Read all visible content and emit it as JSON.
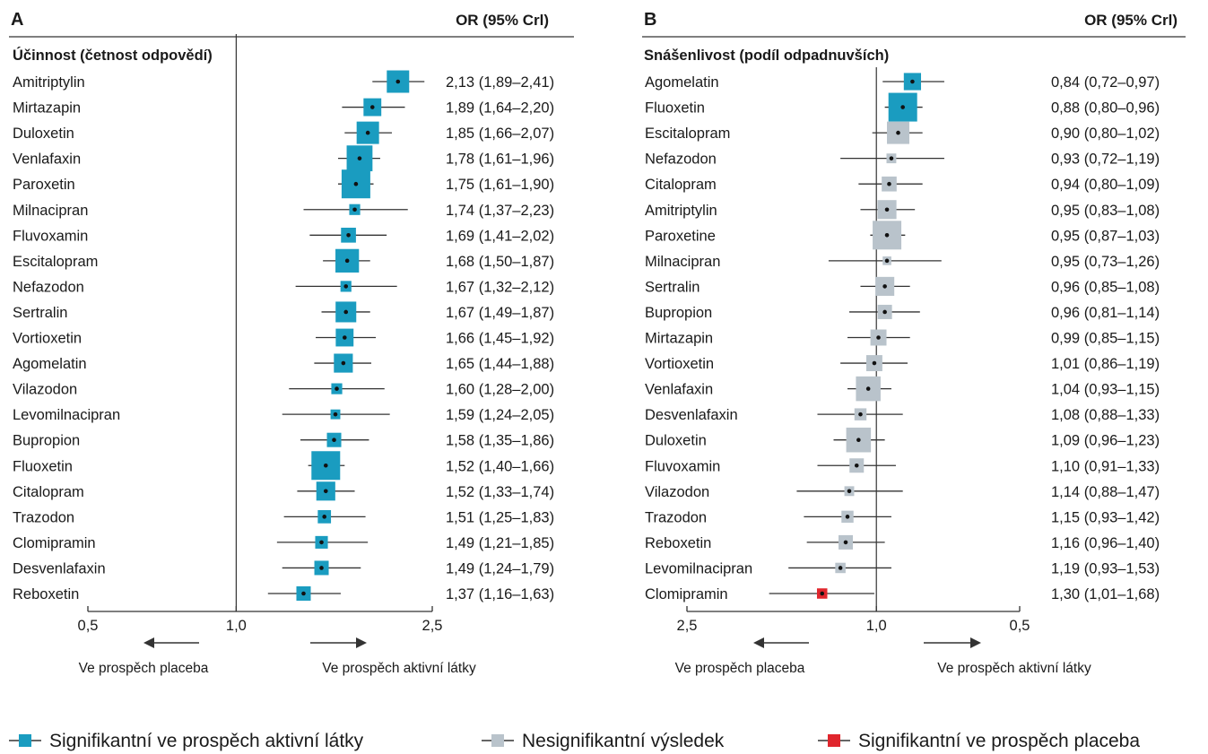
{
  "chart_data": [
    {
      "panel": "A",
      "type": "forest",
      "title": "Účinnost (četnost odpovědí)",
      "column_header": "OR (95% Crl)",
      "x_scale": "log",
      "x_ticks": [
        "0,5",
        "1,0",
        "2,5"
      ],
      "x_tick_values": [
        0.5,
        1.0,
        2.5
      ],
      "xlim": [
        0.5,
        2.5
      ],
      "reference_line": 1.0,
      "direction_left": "Ve prospěch placeba",
      "direction_right": "Ve prospěch aktivní látky",
      "rows": [
        {
          "name": "Amitriptylin",
          "or": 2.13,
          "lo": 1.89,
          "hi": 2.41,
          "weight": 0.78,
          "sig": "active",
          "label": "2,13 (1,89–2,41)"
        },
        {
          "name": "Mirtazapin",
          "or": 1.89,
          "lo": 1.64,
          "hi": 2.2,
          "weight": 0.62,
          "sig": "active",
          "label": "1,89 (1,64–2,20)"
        },
        {
          "name": "Duloxetin",
          "or": 1.85,
          "lo": 1.66,
          "hi": 2.07,
          "weight": 0.78,
          "sig": "active",
          "label": "1,85 (1,66–2,07)"
        },
        {
          "name": "Venlafaxin",
          "or": 1.78,
          "lo": 1.61,
          "hi": 1.96,
          "weight": 0.9,
          "sig": "active",
          "label": "1,78 (1,61–1,96)"
        },
        {
          "name": "Paroxetin",
          "or": 1.75,
          "lo": 1.61,
          "hi": 1.9,
          "weight": 1.0,
          "sig": "active",
          "label": "1,75 (1,61–1,90)"
        },
        {
          "name": "Milnacipran",
          "or": 1.74,
          "lo": 1.37,
          "hi": 2.23,
          "weight": 0.38,
          "sig": "active",
          "label": "1,74 (1,37–2,23)"
        },
        {
          "name": "Fluvoxamin",
          "or": 1.69,
          "lo": 1.41,
          "hi": 2.02,
          "weight": 0.52,
          "sig": "active",
          "label": "1,69 (1,41–2,02)"
        },
        {
          "name": "Escitalopram",
          "or": 1.68,
          "lo": 1.5,
          "hi": 1.87,
          "weight": 0.82,
          "sig": "active",
          "label": "1,68 (1,50–1,87)"
        },
        {
          "name": "Nefazodon",
          "or": 1.67,
          "lo": 1.32,
          "hi": 2.12,
          "weight": 0.38,
          "sig": "active",
          "label": "1,67 (1,32–2,12)"
        },
        {
          "name": "Sertralin",
          "or": 1.67,
          "lo": 1.49,
          "hi": 1.87,
          "weight": 0.72,
          "sig": "active",
          "label": "1,67 (1,49–1,87)"
        },
        {
          "name": "Vortioxetin",
          "or": 1.66,
          "lo": 1.45,
          "hi": 1.92,
          "weight": 0.62,
          "sig": "active",
          "label": "1,66 (1,45–1,92)"
        },
        {
          "name": "Agomelatin",
          "or": 1.65,
          "lo": 1.44,
          "hi": 1.88,
          "weight": 0.66,
          "sig": "active",
          "label": "1,65 (1,44–1,88)"
        },
        {
          "name": "Vilazodon",
          "or": 1.6,
          "lo": 1.28,
          "hi": 2.0,
          "weight": 0.38,
          "sig": "active",
          "label": "1,60 (1,28–2,00)"
        },
        {
          "name": "Levomilnacipran",
          "or": 1.59,
          "lo": 1.24,
          "hi": 2.05,
          "weight": 0.34,
          "sig": "active",
          "label": "1,59 (1,24–2,05)"
        },
        {
          "name": "Bupropion",
          "or": 1.58,
          "lo": 1.35,
          "hi": 1.86,
          "weight": 0.5,
          "sig": "active",
          "label": "1,58 (1,35–1,86)"
        },
        {
          "name": "Fluoxetin",
          "or": 1.52,
          "lo": 1.4,
          "hi": 1.66,
          "weight": 1.0,
          "sig": "active",
          "label": "1,52 (1,40–1,66)"
        },
        {
          "name": "Citalopram",
          "or": 1.52,
          "lo": 1.33,
          "hi": 1.74,
          "weight": 0.66,
          "sig": "active",
          "label": "1,52 (1,33–1,74)"
        },
        {
          "name": "Trazodon",
          "or": 1.51,
          "lo": 1.25,
          "hi": 1.83,
          "weight": 0.46,
          "sig": "active",
          "label": "1,51 (1,25–1,83)"
        },
        {
          "name": "Clomipramin",
          "or": 1.49,
          "lo": 1.21,
          "hi": 1.85,
          "weight": 0.44,
          "sig": "active",
          "label": "1,49 (1,21–1,85)"
        },
        {
          "name": "Desvenlafaxin",
          "or": 1.49,
          "lo": 1.24,
          "hi": 1.79,
          "weight": 0.5,
          "sig": "active",
          "label": "1,49 (1,24–1,79)"
        },
        {
          "name": "Reboxetin",
          "or": 1.37,
          "lo": 1.16,
          "hi": 1.63,
          "weight": 0.5,
          "sig": "active",
          "label": "1,37 (1,16–1,63)"
        }
      ]
    },
    {
      "panel": "B",
      "type": "forest",
      "title": "Snášenlivost (podíl odpadnuvších)",
      "column_header": "OR (95% Crl)",
      "x_scale": "log",
      "x_reversed": true,
      "x_ticks": [
        "2,5",
        "1,0",
        "0,5"
      ],
      "x_tick_values": [
        2.5,
        1.0,
        0.5
      ],
      "xlim": [
        2.5,
        0.5
      ],
      "reference_line": 1.0,
      "direction_left": "Ve prospěch placeba",
      "direction_right": "Ve prospěch aktivní látky",
      "rows": [
        {
          "name": "Agomelatin",
          "or": 0.84,
          "lo": 0.72,
          "hi": 0.97,
          "weight": 0.6,
          "sig": "active",
          "label": "0,84 (0,72–0,97)"
        },
        {
          "name": "Fluoxetin",
          "or": 0.88,
          "lo": 0.8,
          "hi": 0.96,
          "weight": 1.0,
          "sig": "active",
          "label": "0,88 (0,80–0,96)"
        },
        {
          "name": "Escitalopram",
          "or": 0.9,
          "lo": 0.8,
          "hi": 1.02,
          "weight": 0.78,
          "sig": "ns",
          "label": "0,90 (0,80–1,02)"
        },
        {
          "name": "Nefazodon",
          "or": 0.93,
          "lo": 0.72,
          "hi": 1.19,
          "weight": 0.34,
          "sig": "ns",
          "label": "0,93 (0,72–1,19)"
        },
        {
          "name": "Citalopram",
          "or": 0.94,
          "lo": 0.8,
          "hi": 1.09,
          "weight": 0.52,
          "sig": "ns",
          "label": "0,94 (0,80–1,09)"
        },
        {
          "name": "Amitriptylin",
          "or": 0.95,
          "lo": 0.83,
          "hi": 1.08,
          "weight": 0.66,
          "sig": "ns",
          "label": "0,95 (0,83–1,08)"
        },
        {
          "name": "Paroxetine",
          "or": 0.95,
          "lo": 0.87,
          "hi": 1.03,
          "weight": 1.0,
          "sig": "ns",
          "label": "0,95 (0,87–1,03)"
        },
        {
          "name": "Milnacipran",
          "or": 0.95,
          "lo": 0.73,
          "hi": 1.26,
          "weight": 0.3,
          "sig": "ns",
          "label": "0,95 (0,73–1,26)"
        },
        {
          "name": "Sertralin",
          "or": 0.96,
          "lo": 0.85,
          "hi": 1.08,
          "weight": 0.66,
          "sig": "ns",
          "label": "0,96 (0,85–1,08)"
        },
        {
          "name": "Bupropion",
          "or": 0.96,
          "lo": 0.81,
          "hi": 1.14,
          "weight": 0.5,
          "sig": "ns",
          "label": "0,96 (0,81–1,14)"
        },
        {
          "name": "Mirtazapin",
          "or": 0.99,
          "lo": 0.85,
          "hi": 1.15,
          "weight": 0.56,
          "sig": "ns",
          "label": "0,99 (0,85–1,15)"
        },
        {
          "name": "Vortioxetin",
          "or": 1.01,
          "lo": 0.86,
          "hi": 1.19,
          "weight": 0.56,
          "sig": "ns",
          "label": "1,01 (0,86–1,19)"
        },
        {
          "name": "Venlafaxin",
          "or": 1.04,
          "lo": 0.93,
          "hi": 1.15,
          "weight": 0.86,
          "sig": "ns",
          "label": "1,04 (0,93–1,15)"
        },
        {
          "name": "Desvenlafaxin",
          "or": 1.08,
          "lo": 0.88,
          "hi": 1.33,
          "weight": 0.42,
          "sig": "ns",
          "label": "1,08 (0,88–1,33)"
        },
        {
          "name": "Duloxetin",
          "or": 1.09,
          "lo": 0.96,
          "hi": 1.23,
          "weight": 0.86,
          "sig": "ns",
          "label": "1,09 (0,96–1,23)"
        },
        {
          "name": "Fluvoxamin",
          "or": 1.1,
          "lo": 0.91,
          "hi": 1.33,
          "weight": 0.5,
          "sig": "ns",
          "label": "1,10 (0,91–1,33)"
        },
        {
          "name": "Vilazodon",
          "or": 1.14,
          "lo": 0.88,
          "hi": 1.47,
          "weight": 0.34,
          "sig": "ns",
          "label": "1,14 (0,88–1,47)"
        },
        {
          "name": "Trazodon",
          "or": 1.15,
          "lo": 0.93,
          "hi": 1.42,
          "weight": 0.42,
          "sig": "ns",
          "label": "1,15 (0,93–1,42)"
        },
        {
          "name": "Reboxetin",
          "or": 1.16,
          "lo": 0.96,
          "hi": 1.4,
          "weight": 0.5,
          "sig": "ns",
          "label": "1,16 (0,96–1,40)"
        },
        {
          "name": "Levomilnacipran",
          "or": 1.19,
          "lo": 0.93,
          "hi": 1.53,
          "weight": 0.36,
          "sig": "ns",
          "label": "1,19 (0,93–1,53)"
        },
        {
          "name": "Clomipramin",
          "or": 1.3,
          "lo": 1.01,
          "hi": 1.68,
          "weight": 0.36,
          "sig": "placebo",
          "label": "1,30 (1,01–1,68)"
        }
      ]
    }
  ],
  "legend": {
    "placement": "bottom",
    "items": [
      {
        "key": "active",
        "label": "Signifikantní ve prospěch aktivní látky"
      },
      {
        "key": "ns",
        "label": "Nesignifikantní výsledek"
      },
      {
        "key": "placebo",
        "label": "Signifikantní ve prospěch placeba"
      }
    ]
  },
  "colors": {
    "active": "#1a9cc0",
    "ns": "#b9c3cb",
    "placebo": "#e0262d",
    "line": "#333333",
    "text": "#1a1a1a"
  }
}
